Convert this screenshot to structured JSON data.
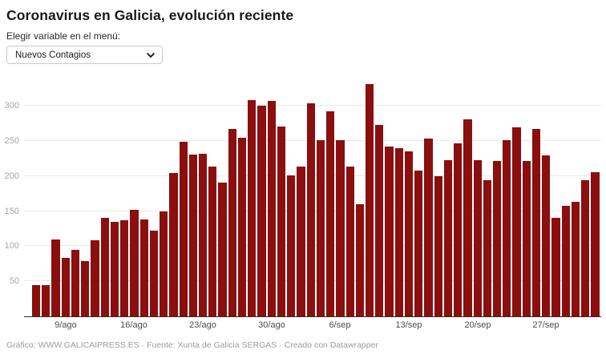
{
  "header": {
    "title": "Coronavirus en Galicia, evolución reciente",
    "subtitle": "Elegir variable en el menú:"
  },
  "dropdown": {
    "selected": "Nuevos Contagios"
  },
  "footer": {
    "text": "Gráfico: WWW.GALICAIPRESS.ES · Fuente: Xunta de Galicia SERGAS · Creado con Datawrapper"
  },
  "chart_data": {
    "type": "bar",
    "title": "Coronavirus en Galicia, evolución reciente",
    "series_name": "Nuevos Contagios",
    "categories": [
      "6/ago",
      "7/ago",
      "8/ago",
      "9/ago",
      "10/ago",
      "11/ago",
      "12/ago",
      "13/ago",
      "14/ago",
      "15/ago",
      "16/ago",
      "17/ago",
      "18/ago",
      "19/ago",
      "20/ago",
      "21/ago",
      "22/ago",
      "23/ago",
      "24/ago",
      "25/ago",
      "26/ago",
      "27/ago",
      "28/ago",
      "29/ago",
      "30/ago",
      "31/ago",
      "1/sep",
      "2/sep",
      "3/sep",
      "4/sep",
      "5/sep",
      "6/sep",
      "7/sep",
      "8/sep",
      "9/sep",
      "10/sep",
      "11/sep",
      "12/sep",
      "13/sep",
      "14/sep",
      "15/sep",
      "16/sep",
      "17/sep",
      "18/sep",
      "19/sep",
      "20/sep",
      "21/sep",
      "22/sep",
      "23/sep",
      "24/sep",
      "25/sep",
      "26/sep",
      "27/sep",
      "28/sep",
      "29/sep",
      "30/sep",
      "1/oct",
      "2/oct"
    ],
    "values": [
      44,
      44,
      110,
      83,
      95,
      79,
      108,
      140,
      135,
      137,
      152,
      138,
      122,
      150,
      204,
      249,
      231,
      232,
      213,
      190,
      267,
      255,
      308,
      300,
      307,
      270,
      201,
      213,
      303,
      251,
      292,
      251,
      213,
      160,
      331,
      273,
      242,
      240,
      235,
      208,
      253,
      200,
      223,
      247,
      281,
      222,
      194,
      221,
      251,
      269,
      221,
      267,
      229,
      140,
      158,
      163,
      194,
      205
    ],
    "xticks": [
      "9/ago",
      "16/ago",
      "23/ago",
      "30/ago",
      "6/sep",
      "13/sep",
      "20/sep",
      "27/sep"
    ],
    "yticks": [
      50,
      100,
      150,
      200,
      250,
      300
    ],
    "ylim": [
      0,
      340
    ],
    "xlabel": "",
    "ylabel": "",
    "grid": "horizontal",
    "legend": "none",
    "bar_color": "#8b0f0f"
  }
}
